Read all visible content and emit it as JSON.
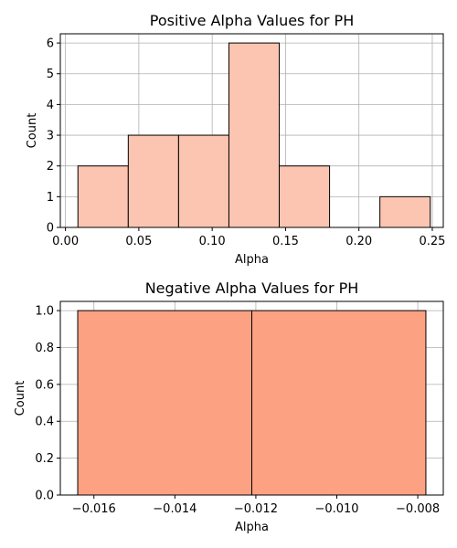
{
  "chart_data": [
    {
      "type": "bar",
      "title": "Positive Alpha Values for PH",
      "xlabel": "Alpha",
      "ylabel": "Count",
      "xlim": [
        -0.0035,
        0.2575
      ],
      "ylim": [
        0,
        6.3
      ],
      "xticks": [
        0.0,
        0.05,
        0.1,
        0.15,
        0.2,
        0.25
      ],
      "xtick_labels": [
        "0.00",
        "0.05",
        "0.10",
        "0.15",
        "0.20",
        "0.25"
      ],
      "yticks": [
        0,
        1,
        2,
        3,
        4,
        5,
        6
      ],
      "ytick_labels": [
        "0",
        "1",
        "2",
        "3",
        "4",
        "5",
        "6"
      ],
      "bins": [
        {
          "x0": 0.0085,
          "x1": 0.0428,
          "count": 2
        },
        {
          "x0": 0.0428,
          "x1": 0.0771,
          "count": 3
        },
        {
          "x0": 0.0771,
          "x1": 0.1114,
          "count": 3
        },
        {
          "x0": 0.1114,
          "x1": 0.1457,
          "count": 6
        },
        {
          "x0": 0.1457,
          "x1": 0.18,
          "count": 2
        },
        {
          "x0": 0.18,
          "x1": 0.2143,
          "count": 0
        },
        {
          "x0": 0.2143,
          "x1": 0.2486,
          "count": 1
        }
      ],
      "bar_color": "#fcc5b1",
      "edge_color": "#000000",
      "grid": true
    },
    {
      "type": "bar",
      "title": "Negative Alpha Values for PH",
      "xlabel": "Alpha",
      "ylabel": "Count",
      "xlim": [
        -0.01683,
        -0.00737
      ],
      "ylim": [
        0,
        1.05
      ],
      "xticks": [
        -0.016,
        -0.014,
        -0.012,
        -0.01,
        -0.008
      ],
      "xtick_labels": [
        "−0.016",
        "−0.014",
        "−0.012",
        "−0.010",
        "−0.008"
      ],
      "yticks": [
        0,
        0.2,
        0.4,
        0.6,
        0.8,
        1.0
      ],
      "ytick_labels": [
        "0.0",
        "0.2",
        "0.4",
        "0.6",
        "0.8",
        "1.0"
      ],
      "bins": [
        {
          "x0": -0.0164,
          "x1": -0.0121,
          "count": 1
        },
        {
          "x0": -0.0121,
          "x1": -0.0078,
          "count": 1
        }
      ],
      "bar_color": "#fca283",
      "edge_color": "#000000",
      "grid": true
    }
  ]
}
